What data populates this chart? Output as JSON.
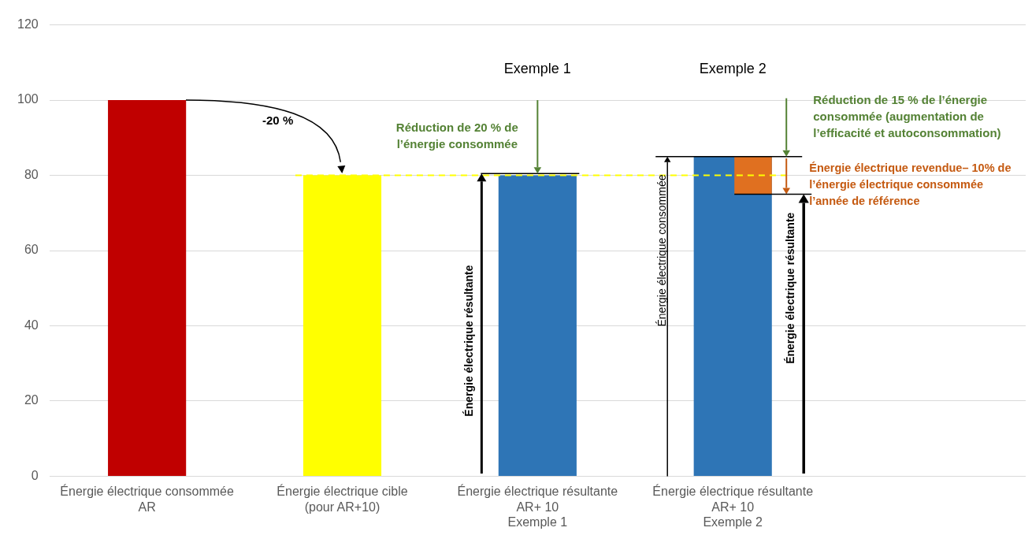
{
  "chart_data": {
    "type": "bar",
    "categories": [
      "Énergie électrique consommée\nAR",
      "Énergie électrique cible\n(pour AR+10)",
      "Énergie électrique résultante\nAR+ 10\nExemple 1",
      "Énergie électrique résultante\nAR+ 10\nExemple 2",
      null
    ],
    "series": [
      {
        "values": [
          100,
          80,
          80,
          85,
          null
        ],
        "colors": [
          "#c00000",
          "#ffff00",
          "#2e75b6",
          "#2e75b6",
          "#2e75b6"
        ]
      },
      {
        "values": [
          null,
          null,
          null,
          10,
          null
        ],
        "base": [
          null,
          null,
          null,
          75,
          null
        ],
        "color": "#e07020"
      }
    ],
    "ylim": [
      0,
      120
    ],
    "yticks": [
      0,
      20,
      40,
      60,
      80,
      100,
      120
    ],
    "grid": "y",
    "legend": false,
    "ref_lines": [
      {
        "axis": "y",
        "value": 80,
        "color": "#ffff00",
        "line_style": "dashed"
      }
    ],
    "annotations": [
      "Exemple 1",
      "Exemple 2",
      "-20 %",
      "Réduction de 20 % de l’énergie consommée",
      "Réduction de 15 % de l’énergie consommée (augmentation de l’efficacité et autoconsommation)",
      {
        "text": "Énergie électrique revendue– 10% de l’énergie électrique consommée l’année de référence",
        "x": "Énergie électrique résultante\nAR+ 10\nExemple 2",
        "y": 75
      },
      "Énergie électrique résultante",
      "Énergie électrique consommée",
      "Énergie électrique résultante"
    ]
  }
}
